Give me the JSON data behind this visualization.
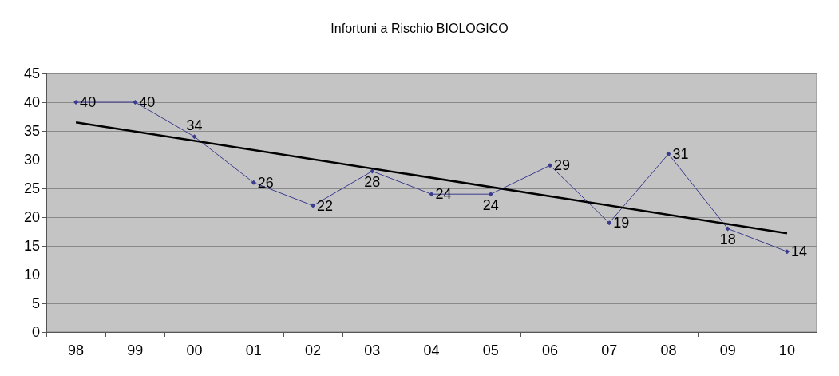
{
  "chart_data": {
    "type": "line",
    "title": "Infortuni a Rischio BIOLOGICO",
    "categories": [
      "98",
      "99",
      "00",
      "01",
      "02",
      "03",
      "04",
      "05",
      "06",
      "07",
      "08",
      "09",
      "10"
    ],
    "series": [
      {
        "color": "#3b3b8f",
        "values": [
          40,
          40,
          34,
          26,
          22,
          28,
          24,
          24,
          29,
          19,
          31,
          18,
          14
        ],
        "value_labels": [
          "40",
          "40",
          "34",
          "26",
          "22",
          "28",
          "24",
          "24",
          "29",
          "19",
          "31",
          "18",
          "14"
        ],
        "marker": "diamond"
      },
      {
        "color": "#000000",
        "x": [
          "98",
          "10"
        ],
        "values": [
          36.5,
          17.2
        ],
        "marker": "none"
      }
    ],
    "ylim": [
      0,
      45
    ],
    "yticks": [
      0,
      5,
      10,
      15,
      20,
      25,
      30,
      35,
      40,
      45
    ],
    "grid": "y"
  }
}
